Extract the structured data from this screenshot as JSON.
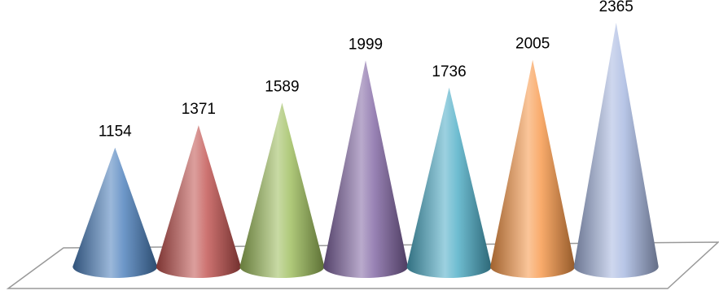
{
  "chart_data": {
    "type": "cone",
    "categories": [
      null,
      null,
      null,
      null,
      null,
      null,
      null
    ],
    "values": [
      1154,
      1371,
      1589,
      1999,
      1736,
      2005,
      2365
    ],
    "colors": [
      "#4a7ebb",
      "#c0504d",
      "#9bbb59",
      "#8064a2",
      "#4bacc6",
      "#f79646",
      "#a5b6e0"
    ]
  }
}
